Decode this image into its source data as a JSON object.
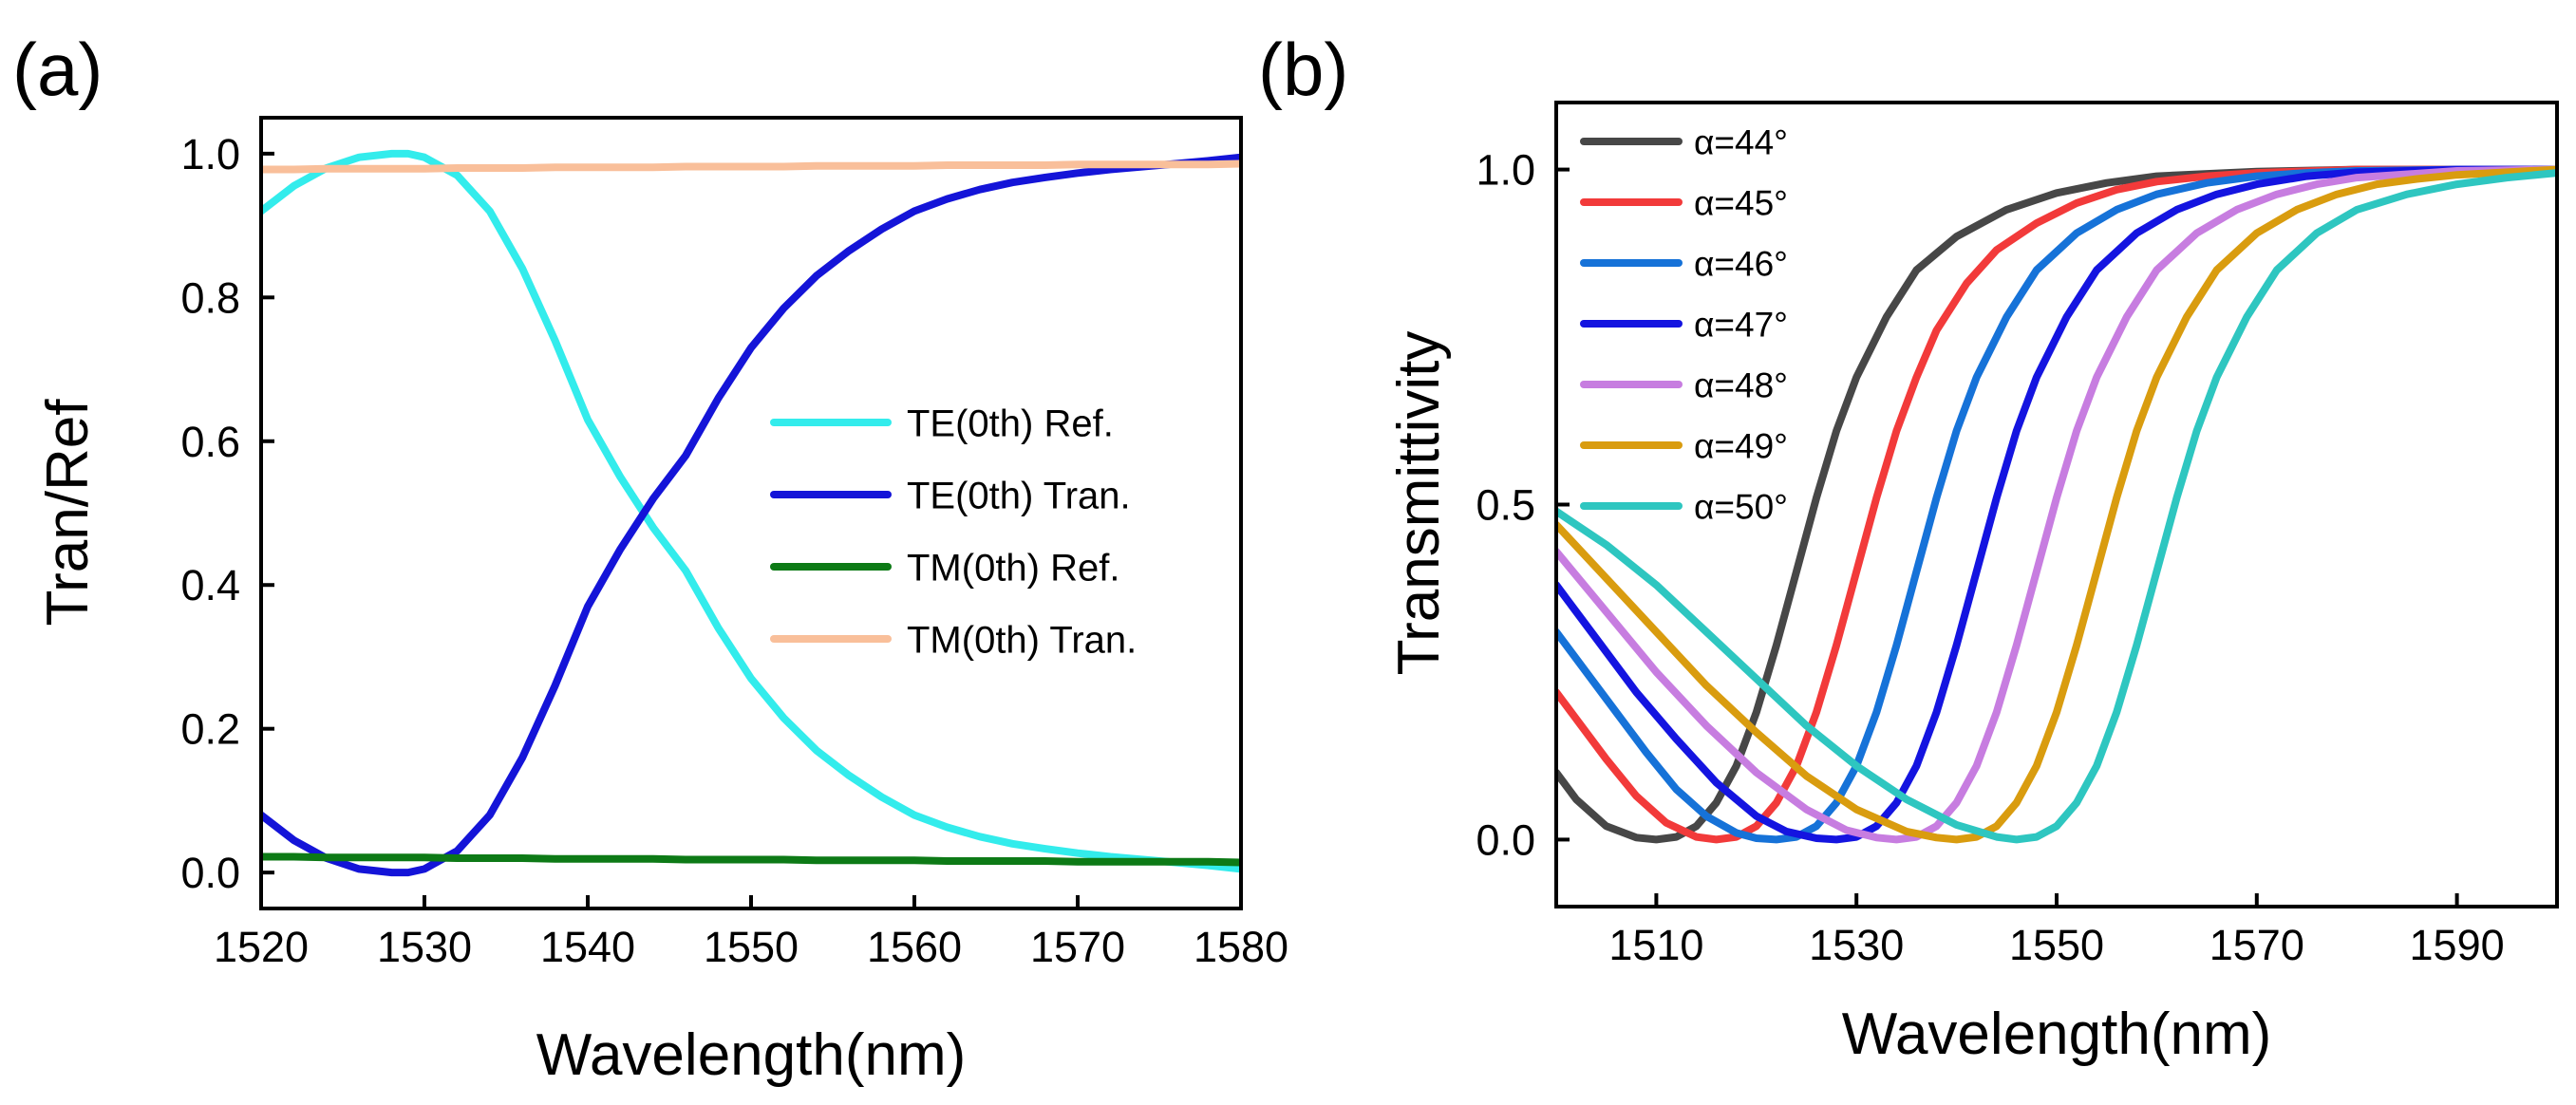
{
  "chart_data": [
    {
      "panel": "(a)",
      "type": "line",
      "xlabel": "Wavelength(nm)",
      "ylabel": "Tran/Ref",
      "xlim": [
        1520,
        1580
      ],
      "ylim": [
        -0.05,
        1.05
      ],
      "xticks": [
        1520,
        1530,
        1540,
        1550,
        1560,
        1570,
        1580
      ],
      "xtick_labels": [
        "1520",
        "1530",
        "1540",
        "1550",
        "1560",
        "1570",
        "1580"
      ],
      "yticks": [
        0.0,
        0.2,
        0.4,
        0.6,
        0.8,
        1.0
      ],
      "ytick_labels": [
        "0.0",
        "0.2",
        "0.4",
        "0.6",
        "0.8",
        "1.0"
      ],
      "legend_position": "center-right",
      "x": [
        1520,
        1522,
        1524,
        1526,
        1528,
        1529,
        1530,
        1532,
        1534,
        1536,
        1538,
        1540,
        1542,
        1544,
        1546,
        1548,
        1550,
        1552,
        1554,
        1556,
        1558,
        1560,
        1562,
        1564,
        1566,
        1568,
        1570,
        1572,
        1574,
        1576,
        1578,
        1580
      ],
      "series": [
        {
          "name": "TE(0th) Ref.",
          "color": "#33ecec",
          "values": [
            0.92,
            0.955,
            0.98,
            0.995,
            1.0,
            1.0,
            0.995,
            0.97,
            0.92,
            0.84,
            0.74,
            0.63,
            0.55,
            0.48,
            0.42,
            0.34,
            0.27,
            0.215,
            0.17,
            0.135,
            0.105,
            0.08,
            0.063,
            0.05,
            0.04,
            0.033,
            0.027,
            0.022,
            0.018,
            0.014,
            0.01,
            0.005
          ]
        },
        {
          "name": "TE(0th) Tran.",
          "color": "#1414d8",
          "values": [
            0.08,
            0.045,
            0.02,
            0.005,
            0.0,
            0.0,
            0.005,
            0.03,
            0.08,
            0.16,
            0.26,
            0.37,
            0.45,
            0.52,
            0.58,
            0.66,
            0.73,
            0.785,
            0.83,
            0.865,
            0.895,
            0.92,
            0.937,
            0.95,
            0.96,
            0.967,
            0.973,
            0.978,
            0.982,
            0.986,
            0.99,
            0.995
          ]
        },
        {
          "name": "TM(0th) Ref.",
          "color": "#0d7a16",
          "values": [
            0.022,
            0.022,
            0.021,
            0.021,
            0.021,
            0.021,
            0.021,
            0.02,
            0.02,
            0.02,
            0.019,
            0.019,
            0.019,
            0.019,
            0.018,
            0.018,
            0.018,
            0.018,
            0.017,
            0.017,
            0.017,
            0.017,
            0.016,
            0.016,
            0.016,
            0.016,
            0.015,
            0.015,
            0.015,
            0.015,
            0.015,
            0.014
          ]
        },
        {
          "name": "TM(0th) Tran.",
          "color": "#f9bf9a",
          "values": [
            0.978,
            0.978,
            0.979,
            0.979,
            0.979,
            0.979,
            0.979,
            0.98,
            0.98,
            0.98,
            0.981,
            0.981,
            0.981,
            0.981,
            0.982,
            0.982,
            0.982,
            0.982,
            0.983,
            0.983,
            0.983,
            0.983,
            0.984,
            0.984,
            0.984,
            0.984,
            0.985,
            0.985,
            0.985,
            0.985,
            0.985,
            0.986
          ]
        }
      ]
    },
    {
      "panel": "(b)",
      "type": "line",
      "xlabel": "Wavelength(nm)",
      "ylabel": "Transmittivity",
      "xlim": [
        1500,
        1600
      ],
      "ylim": [
        -0.1,
        1.1
      ],
      "xticks": [
        1510,
        1530,
        1550,
        1570,
        1590
      ],
      "xtick_labels": [
        "1510",
        "1530",
        "1550",
        "1570",
        "1590"
      ],
      "yticks": [
        0.0,
        0.5,
        1.0
      ],
      "ytick_labels": [
        "0.0",
        "0.5",
        "1.0"
      ],
      "legend_position": "top-left",
      "series": [
        {
          "name": "α=44°",
          "color": "#474747",
          "x": [
            1500,
            1502,
            1505,
            1508,
            1510,
            1512,
            1514,
            1516,
            1518,
            1520,
            1522,
            1524,
            1526,
            1528,
            1530,
            1533,
            1536,
            1540,
            1545,
            1550,
            1555,
            1560,
            1570,
            1580,
            1590,
            1600
          ],
          "values": [
            0.1,
            0.06,
            0.02,
            0.003,
            0.0,
            0.004,
            0.02,
            0.055,
            0.11,
            0.19,
            0.29,
            0.4,
            0.51,
            0.61,
            0.69,
            0.78,
            0.85,
            0.9,
            0.94,
            0.965,
            0.98,
            0.99,
            0.997,
            1.0,
            1.0,
            1.0
          ]
        },
        {
          "name": "α=45°",
          "color": "#f23a3a",
          "x": [
            1500,
            1502,
            1505,
            1508,
            1511,
            1514,
            1516,
            1518,
            1520,
            1522,
            1524,
            1526,
            1528,
            1530,
            1532,
            1534,
            1536,
            1538,
            1541,
            1544,
            1548,
            1552,
            1556,
            1560,
            1565,
            1570,
            1580,
            1590,
            1600
          ],
          "values": [
            0.22,
            0.18,
            0.12,
            0.065,
            0.025,
            0.004,
            0.0,
            0.004,
            0.02,
            0.055,
            0.11,
            0.19,
            0.29,
            0.4,
            0.51,
            0.61,
            0.69,
            0.76,
            0.83,
            0.88,
            0.92,
            0.95,
            0.97,
            0.982,
            0.99,
            0.995,
            1.0,
            1.0,
            1.0
          ]
        },
        {
          "name": "α=46°",
          "color": "#1672d8",
          "x": [
            1500,
            1503,
            1506,
            1509,
            1512,
            1515,
            1518,
            1520,
            1522,
            1524,
            1526,
            1528,
            1530,
            1532,
            1534,
            1536,
            1538,
            1540,
            1542,
            1545,
            1548,
            1552,
            1556,
            1560,
            1565,
            1570,
            1575,
            1580,
            1590,
            1600
          ],
          "values": [
            0.31,
            0.25,
            0.19,
            0.13,
            0.075,
            0.035,
            0.01,
            0.002,
            0.0,
            0.004,
            0.02,
            0.055,
            0.11,
            0.19,
            0.29,
            0.4,
            0.51,
            0.61,
            0.69,
            0.78,
            0.85,
            0.905,
            0.94,
            0.963,
            0.98,
            0.99,
            0.995,
            0.998,
            1.0,
            1.0
          ]
        },
        {
          "name": "α=47°",
          "color": "#1414e0",
          "x": [
            1500,
            1504,
            1508,
            1512,
            1516,
            1520,
            1523,
            1526,
            1528,
            1530,
            1532,
            1534,
            1536,
            1538,
            1540,
            1542,
            1544,
            1546,
            1548,
            1551,
            1554,
            1558,
            1562,
            1566,
            1570,
            1575,
            1580,
            1590,
            1600
          ],
          "values": [
            0.38,
            0.3,
            0.22,
            0.15,
            0.085,
            0.035,
            0.012,
            0.002,
            0.0,
            0.004,
            0.02,
            0.055,
            0.11,
            0.19,
            0.29,
            0.4,
            0.51,
            0.61,
            0.69,
            0.78,
            0.85,
            0.905,
            0.94,
            0.963,
            0.978,
            0.99,
            0.996,
            1.0,
            1.0
          ]
        },
        {
          "name": "α=48°",
          "color": "#c77de0",
          "x": [
            1500,
            1505,
            1510,
            1515,
            1520,
            1525,
            1529,
            1532,
            1534,
            1536,
            1538,
            1540,
            1542,
            1544,
            1546,
            1548,
            1550,
            1552,
            1554,
            1557,
            1560,
            1564,
            1568,
            1572,
            1576,
            1580,
            1590,
            1600
          ],
          "values": [
            0.43,
            0.34,
            0.25,
            0.17,
            0.1,
            0.045,
            0.014,
            0.003,
            0.0,
            0.004,
            0.02,
            0.055,
            0.11,
            0.19,
            0.29,
            0.4,
            0.51,
            0.61,
            0.69,
            0.78,
            0.85,
            0.905,
            0.94,
            0.963,
            0.978,
            0.988,
            0.998,
            1.0
          ]
        },
        {
          "name": "α=49°",
          "color": "#d99c0f",
          "x": [
            1500,
            1505,
            1510,
            1515,
            1520,
            1525,
            1530,
            1535,
            1538,
            1540,
            1542,
            1544,
            1546,
            1548,
            1550,
            1552,
            1554,
            1556,
            1558,
            1560,
            1563,
            1566,
            1570,
            1574,
            1578,
            1582,
            1586,
            1590,
            1595,
            1600
          ],
          "values": [
            0.47,
            0.39,
            0.31,
            0.23,
            0.16,
            0.095,
            0.045,
            0.012,
            0.003,
            0.0,
            0.004,
            0.02,
            0.055,
            0.11,
            0.19,
            0.29,
            0.4,
            0.51,
            0.61,
            0.69,
            0.78,
            0.85,
            0.905,
            0.94,
            0.963,
            0.978,
            0.986,
            0.992,
            0.996,
            1.0
          ]
        },
        {
          "name": "α=50°",
          "color": "#2ec6c0",
          "x": [
            1500,
            1505,
            1510,
            1515,
            1520,
            1525,
            1530,
            1535,
            1540,
            1544,
            1546,
            1548,
            1550,
            1552,
            1554,
            1556,
            1558,
            1560,
            1562,
            1564,
            1566,
            1569,
            1572,
            1576,
            1580,
            1585,
            1590,
            1595,
            1600
          ],
          "values": [
            0.49,
            0.44,
            0.38,
            0.31,
            0.24,
            0.17,
            0.11,
            0.06,
            0.022,
            0.004,
            0.0,
            0.004,
            0.02,
            0.055,
            0.11,
            0.19,
            0.29,
            0.4,
            0.51,
            0.61,
            0.69,
            0.78,
            0.85,
            0.905,
            0.94,
            0.963,
            0.978,
            0.988,
            0.995
          ]
        }
      ]
    }
  ]
}
